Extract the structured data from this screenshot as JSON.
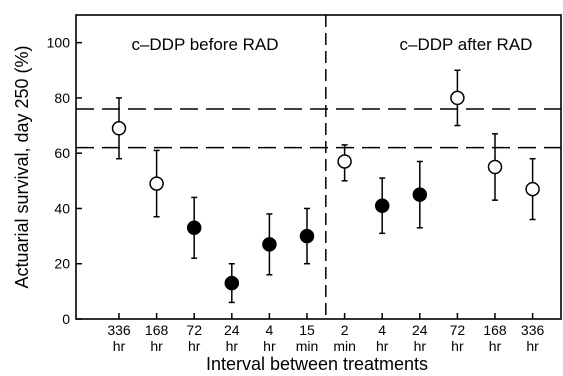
{
  "chart_data": {
    "type": "scatter",
    "ylabel": "Actuarial survival, day 250 (%)",
    "xlabel": "Interval between treatments",
    "ylim": [
      0,
      110
    ],
    "yticks": [
      0,
      20,
      40,
      60,
      80,
      100
    ],
    "grid": false,
    "legend": "none",
    "panel_labels": [
      "c–DDP before RAD",
      "c–DDP after RAD"
    ],
    "reference_lines_y": [
      76,
      62
    ],
    "divider_between_categories": [
      5,
      6
    ],
    "categories": [
      {
        "value": "336",
        "unit": "hr"
      },
      {
        "value": "168",
        "unit": "hr"
      },
      {
        "value": "72",
        "unit": "hr"
      },
      {
        "value": "24",
        "unit": "hr"
      },
      {
        "value": "4",
        "unit": "hr"
      },
      {
        "value": "15",
        "unit": "min"
      },
      {
        "value": "2",
        "unit": "min"
      },
      {
        "value": "4",
        "unit": "hr"
      },
      {
        "value": "24",
        "unit": "hr"
      },
      {
        "value": "72",
        "unit": "hr"
      },
      {
        "value": "168",
        "unit": "hr"
      },
      {
        "value": "336",
        "unit": "hr"
      }
    ],
    "points": [
      {
        "y": 69,
        "low": 58,
        "high": 80,
        "filled": false
      },
      {
        "y": 49,
        "low": 37,
        "high": 61,
        "filled": false
      },
      {
        "y": 33,
        "low": 22,
        "high": 44,
        "filled": true
      },
      {
        "y": 13,
        "low": 6,
        "high": 20,
        "filled": true
      },
      {
        "y": 27,
        "low": 16,
        "high": 38,
        "filled": true
      },
      {
        "y": 30,
        "low": 20,
        "high": 40,
        "filled": true
      },
      {
        "y": 57,
        "low": 50,
        "high": 63,
        "filled": false
      },
      {
        "y": 41,
        "low": 31,
        "high": 51,
        "filled": true
      },
      {
        "y": 45,
        "low": 33,
        "high": 57,
        "filled": true
      },
      {
        "y": 80,
        "low": 70,
        "high": 90,
        "filled": false
      },
      {
        "y": 55,
        "low": 43,
        "high": 67,
        "filled": false
      },
      {
        "y": 47,
        "low": 36,
        "high": 58,
        "filled": false
      }
    ],
    "colors": {
      "ink": "#000000",
      "background": "#ffffff"
    }
  }
}
